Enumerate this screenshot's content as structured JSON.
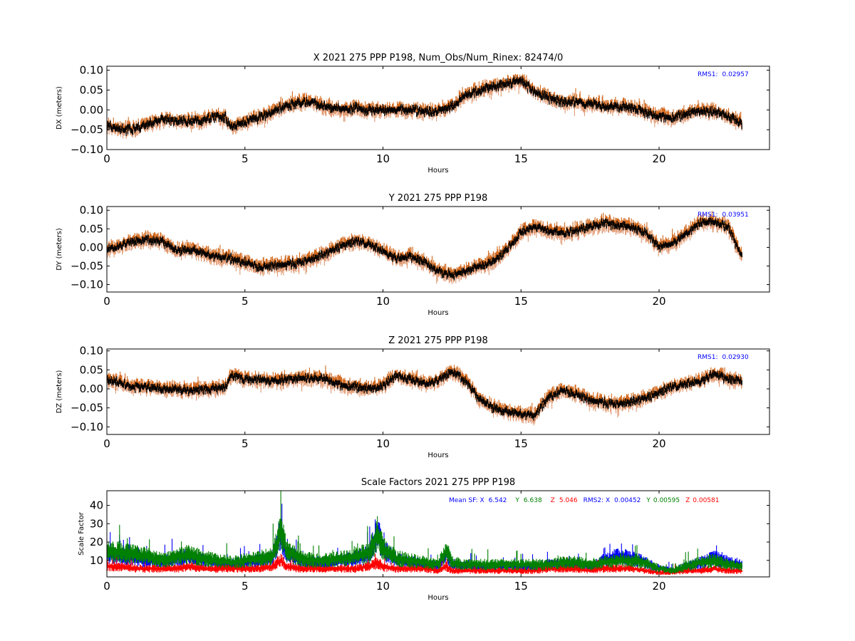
{
  "chart_data": [
    {
      "type": "scatter",
      "title": "X 2021 275 PPP  P198, Num_Obs/Num_Rinex: 82474/0",
      "xlabel": "Hours",
      "ylabel": "DX (meters)",
      "xlim": [
        0,
        24
      ],
      "ylim": [
        -0.1,
        0.11
      ],
      "xticks": [
        0,
        5,
        10,
        15,
        20
      ],
      "xtick_labels": [
        "0",
        "5",
        "10",
        "15",
        "20"
      ],
      "yticks": [
        -0.1,
        -0.05,
        0.0,
        0.05,
        0.1
      ],
      "ytick_labels": [
        "−0.10",
        "−0.05",
        "0.00",
        "0.05",
        "0.10"
      ],
      "annotation": {
        "label": "RMS1:",
        "value": "0.02957",
        "color": "#0000ff"
      },
      "series_colors": {
        "upper": "#d2691e",
        "lower": "#e09870",
        "center": "#000000"
      },
      "envelope_halfwidth": 0.013,
      "x_end": 23.0,
      "series": [
        {
          "name": "",
          "x": [
            0,
            0.5,
            1,
            1.5,
            2,
            2.5,
            3,
            3.5,
            4,
            4.3,
            4.5,
            5,
            5.5,
            6,
            6.5,
            7,
            7.5,
            8,
            8.5,
            9,
            9.5,
            10,
            10.5,
            11,
            11.5,
            12,
            12.5,
            13,
            13.5,
            14,
            14.5,
            15,
            15.5,
            16,
            16.5,
            17,
            17.5,
            18,
            18.5,
            19,
            19.5,
            20,
            20.5,
            21,
            21.5,
            22,
            22.5,
            23
          ],
          "y": [
            -0.04,
            -0.05,
            -0.048,
            -0.035,
            -0.025,
            -0.028,
            -0.03,
            -0.025,
            -0.015,
            -0.02,
            -0.045,
            -0.03,
            -0.02,
            -0.005,
            0.01,
            0.02,
            0.018,
            0.005,
            0.0,
            0.005,
            0.0,
            0.0,
            0.0,
            0.0,
            -0.005,
            -0.005,
            0.01,
            0.035,
            0.05,
            0.058,
            0.065,
            0.072,
            0.045,
            0.03,
            0.02,
            0.02,
            0.015,
            0.01,
            0.008,
            0.005,
            -0.005,
            -0.015,
            -0.02,
            -0.01,
            0.0,
            -0.005,
            -0.015,
            -0.035
          ]
        }
      ]
    },
    {
      "type": "scatter",
      "title": "Y 2021 275 PPP  P198",
      "xlabel": "Hours",
      "ylabel": "DY (meters)",
      "xlim": [
        0,
        24
      ],
      "ylim": [
        -0.12,
        0.11
      ],
      "xticks": [
        0,
        5,
        10,
        15,
        20
      ],
      "xtick_labels": [
        "0",
        "5",
        "10",
        "15",
        "20"
      ],
      "yticks": [
        -0.1,
        -0.05,
        0.0,
        0.05,
        0.1
      ],
      "ytick_labels": [
        "−0.10",
        "−0.05",
        "0.00",
        "0.05",
        "0.10"
      ],
      "annotation": {
        "label": "RMS1:",
        "value": "0.03951",
        "color": "#0000ff"
      },
      "series_colors": {
        "upper": "#d2691e",
        "lower": "#e09870",
        "center": "#000000"
      },
      "envelope_halfwidth": 0.015,
      "x_end": 23.0,
      "series": [
        {
          "name": "",
          "x": [
            0,
            0.5,
            1,
            1.5,
            2,
            2.5,
            3,
            3.5,
            4,
            4.5,
            5,
            5.5,
            6,
            6.5,
            7,
            7.5,
            8,
            8.5,
            9,
            9.5,
            10,
            10.5,
            11,
            11.5,
            12,
            12.5,
            13,
            13.5,
            14,
            14.5,
            15,
            15.5,
            16,
            16.5,
            17,
            17.5,
            18,
            18.5,
            19,
            19.5,
            20,
            20.5,
            21,
            21.5,
            22,
            22.5,
            23
          ],
          "y": [
            -0.005,
            0.005,
            0.015,
            0.02,
            0.015,
            -0.01,
            -0.005,
            -0.015,
            -0.025,
            -0.03,
            -0.04,
            -0.055,
            -0.05,
            -0.045,
            -0.04,
            -0.03,
            -0.015,
            0.005,
            0.015,
            0.01,
            -0.01,
            -0.03,
            -0.025,
            -0.04,
            -0.065,
            -0.075,
            -0.065,
            -0.05,
            -0.035,
            -0.005,
            0.04,
            0.055,
            0.045,
            0.04,
            0.045,
            0.055,
            0.065,
            0.06,
            0.055,
            0.04,
            0.0,
            0.01,
            0.04,
            0.065,
            0.07,
            0.055,
            -0.025
          ]
        }
      ]
    },
    {
      "type": "scatter",
      "title": "Z 2021 275 PPP  P198",
      "xlabel": "Hours",
      "ylabel": "DZ (meters)",
      "xlim": [
        0,
        24
      ],
      "ylim": [
        -0.12,
        0.105
      ],
      "xticks": [
        0,
        5,
        10,
        15,
        20
      ],
      "xtick_labels": [
        "0",
        "5",
        "10",
        "15",
        "20"
      ],
      "yticks": [
        -0.1,
        -0.05,
        0.0,
        0.05,
        0.1
      ],
      "ytick_labels": [
        "−0.10",
        "−0.05",
        "0.00",
        "0.05",
        "0.10"
      ],
      "annotation": {
        "label": "RMS1:",
        "value": "0.02930",
        "color": "#0000ff"
      },
      "series_colors": {
        "upper": "#d2691e",
        "lower": "#e09870",
        "center": "#000000"
      },
      "envelope_halfwidth": 0.014,
      "x_end": 23.0,
      "series": [
        {
          "name": "",
          "x": [
            0,
            0.5,
            1,
            1.5,
            2,
            2.5,
            3,
            3.5,
            4,
            4.3,
            4.5,
            5,
            5.5,
            6,
            6.5,
            7,
            7.5,
            8,
            8.5,
            9,
            9.5,
            10,
            10.5,
            11,
            11.5,
            12,
            12.5,
            13,
            13.5,
            14,
            14.5,
            15,
            15.5,
            16,
            16.5,
            17,
            17.5,
            18,
            18.5,
            19,
            19.5,
            20,
            20.5,
            21,
            21.5,
            22,
            22.5,
            23
          ],
          "y": [
            0.025,
            0.015,
            0.005,
            0.005,
            0.0,
            0.0,
            -0.005,
            0.0,
            0.0,
            0.005,
            0.035,
            0.025,
            0.025,
            0.02,
            0.025,
            0.03,
            0.028,
            0.025,
            0.01,
            0.005,
            0.0,
            0.01,
            0.035,
            0.025,
            0.015,
            0.02,
            0.045,
            0.02,
            -0.03,
            -0.05,
            -0.06,
            -0.065,
            -0.07,
            -0.02,
            -0.005,
            -0.015,
            -0.03,
            -0.035,
            -0.04,
            -0.035,
            -0.025,
            -0.01,
            0.005,
            0.015,
            0.02,
            0.04,
            0.025,
            0.02
          ]
        }
      ]
    },
    {
      "type": "scatter",
      "title": "Scale Factors 2021 275 PPP  P198",
      "xlabel": "Hours",
      "ylabel": "Scale Factor",
      "xlim": [
        0,
        24
      ],
      "ylim": [
        1,
        48
      ],
      "xticks": [
        0,
        5,
        10,
        15,
        20
      ],
      "xtick_labels": [
        "0",
        "5",
        "10",
        "15",
        "20"
      ],
      "yticks": [
        10,
        20,
        30,
        40
      ],
      "ytick_labels": [
        "10",
        "20",
        "30",
        "40"
      ],
      "annotation": {
        "mean_sf_label": "Mean SF: X",
        "mean_sf_x": "6.542",
        "y_label": "Y",
        "mean_sf_y": "6.638",
        "z_label": "Z",
        "mean_sf_z": "5.046",
        "rms2_label": "RMS2: X",
        "rms2_x": "0.00452",
        "rms2_y_label": "Y",
        "rms2_y": "0.00595",
        "rms2_z_label": "Z",
        "rms2_z": "0.00581",
        "colors": {
          "x": "#0000ff",
          "y": "#008000",
          "z": "#ff0000"
        }
      },
      "x_end": 23.0,
      "series": [
        {
          "name": "X",
          "color": "#0000ff",
          "x": [
            0,
            0.5,
            1,
            1.5,
            2,
            2.5,
            3,
            3.5,
            4,
            4.5,
            5,
            5.5,
            6,
            6.3,
            6.5,
            7,
            7.5,
            8,
            8.5,
            9,
            9.5,
            9.8,
            10,
            10.5,
            11,
            11.5,
            12,
            12.3,
            12.5,
            13,
            13.5,
            14,
            14.5,
            15,
            15.5,
            16,
            16.5,
            17,
            17.5,
            18,
            18.5,
            19,
            19.5,
            20,
            20.5,
            21,
            21.5,
            22,
            22.5,
            23
          ],
          "y": [
            12,
            11,
            10,
            9,
            8,
            10,
            11,
            9,
            8,
            7,
            8,
            9,
            10,
            22,
            13,
            9,
            8,
            8,
            9,
            10,
            12,
            24,
            14,
            9,
            8,
            7,
            6,
            13,
            7,
            6,
            6,
            6,
            6,
            6,
            6,
            7,
            7,
            7,
            6,
            9,
            11,
            10,
            8,
            5,
            4,
            6,
            8,
            10,
            8,
            7
          ]
        },
        {
          "name": "Y",
          "color": "#008000",
          "x": [
            0,
            0.5,
            1,
            1.5,
            2,
            2.5,
            3,
            3.5,
            4,
            4.5,
            5,
            5.5,
            6,
            6.3,
            6.5,
            7,
            7.5,
            8,
            8.5,
            9,
            9.5,
            9.8,
            10,
            10.5,
            11,
            11.5,
            12,
            12.3,
            12.5,
            13,
            13.5,
            14,
            14.5,
            15,
            15.5,
            16,
            16.5,
            17,
            17.5,
            18,
            18.5,
            19,
            19.5,
            20,
            20.5,
            21,
            21.5,
            22,
            22.5,
            23
          ],
          "y": [
            14,
            13,
            12,
            11,
            9,
            11,
            12,
            10,
            9,
            8,
            9,
            10,
            11,
            24,
            14,
            10,
            9,
            9,
            10,
            11,
            13,
            22,
            15,
            10,
            9,
            8,
            7,
            14,
            8,
            7,
            7,
            7,
            7,
            7,
            7,
            7,
            8,
            8,
            7,
            8,
            9,
            9,
            8,
            5,
            4,
            6,
            8,
            9,
            7,
            6
          ]
        },
        {
          "name": "Z",
          "color": "#ff0000",
          "x": [
            0,
            0.5,
            1,
            1.5,
            2,
            2.5,
            3,
            3.5,
            4,
            4.5,
            5,
            5.5,
            6,
            6.3,
            6.5,
            7,
            7.5,
            8,
            8.5,
            9,
            9.5,
            9.8,
            10,
            10.5,
            11,
            11.5,
            12,
            12.3,
            12.5,
            13,
            13.5,
            14,
            14.5,
            15,
            15.5,
            16,
            16.5,
            17,
            17.5,
            18,
            18.5,
            19,
            19.5,
            20,
            20.5,
            21,
            21.5,
            22,
            22.5,
            23
          ],
          "y": [
            6,
            6,
            5,
            5,
            5,
            5,
            6,
            5,
            5,
            5,
            5,
            5,
            6,
            9,
            6,
            5,
            5,
            5,
            5,
            5,
            6,
            8,
            6,
            5,
            5,
            5,
            4,
            6,
            4,
            4,
            4,
            4,
            4,
            4,
            4,
            5,
            5,
            5,
            4,
            5,
            5,
            5,
            4,
            3,
            3,
            4,
            4,
            5,
            4,
            4
          ]
        }
      ]
    }
  ]
}
